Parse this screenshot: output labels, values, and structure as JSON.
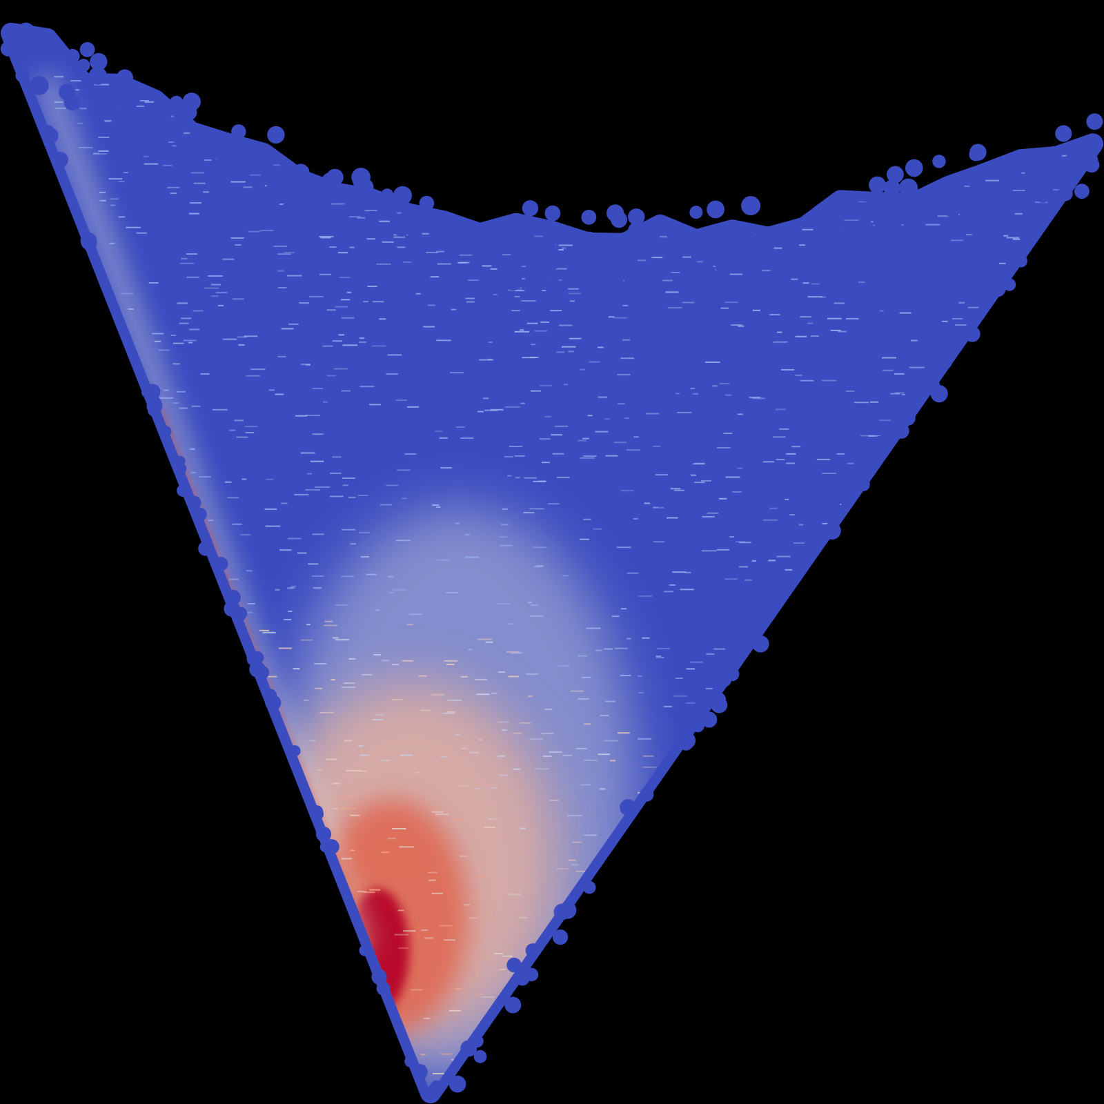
{
  "chart_data": {
    "type": "scatter",
    "title": "",
    "xlabel": "",
    "ylabel": "",
    "axes_visible": false,
    "grid": false,
    "legend": "none",
    "background_color": "#000000",
    "colormap": {
      "name": "coolwarm",
      "low_color": "#3b4cc0",
      "mid_color": "#dddddd",
      "high_color": "#b40426"
    },
    "xlim": [
      0,
      1
    ],
    "ylim": [
      0,
      1
    ],
    "shape_vertices": [
      {
        "x": 0.01,
        "y": 0.97
      },
      {
        "x": 0.99,
        "y": 0.88
      },
      {
        "x": 0.39,
        "y": 0.01
      }
    ],
    "density_peak": {
      "x": 0.33,
      "y": 0.12
    },
    "edge_ridge": [
      {
        "x": 0.04,
        "y": 0.93
      },
      {
        "x": 0.33,
        "y": 0.14
      }
    ]
  }
}
